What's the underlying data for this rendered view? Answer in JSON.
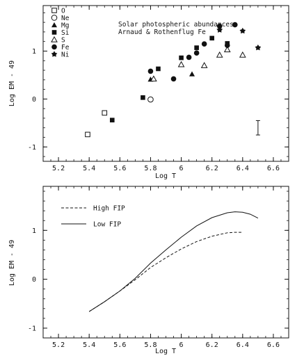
{
  "chart_data": [
    {
      "type": "scatter",
      "xlabel": "Log T",
      "ylabel": "Log EM - 49",
      "xlim": [
        5.1,
        6.7
      ],
      "ylim": [
        -1.3,
        1.95
      ],
      "xticks": [
        5.2,
        5.4,
        5.6,
        5.8,
        6.0,
        6.2,
        6.4,
        6.6
      ],
      "xtick_labels": [
        "5.2",
        "5.4",
        "5.6",
        "5.8",
        "6",
        "6.2",
        "6.4",
        "6.6"
      ],
      "yticks": [
        -1,
        0,
        1
      ],
      "ytick_labels": [
        "-1",
        "0",
        "1"
      ],
      "annotations": [
        "Solar photospheric abundances",
        "Arnaud & Rothenflug Fe"
      ],
      "legend_position": "top-left",
      "series": [
        {
          "name": "O",
          "marker": "open-square",
          "points": [
            [
              5.39,
              -0.74
            ],
            [
              5.5,
              -0.29
            ]
          ]
        },
        {
          "name": "Ne",
          "marker": "open-circle",
          "points": [
            [
              5.8,
              -0.01
            ]
          ]
        },
        {
          "name": "Mg",
          "marker": "filled-triangle",
          "points": [
            [
              5.8,
              0.41
            ],
            [
              6.07,
              0.52
            ]
          ]
        },
        {
          "name": "Si",
          "marker": "filled-square",
          "points": [
            [
              5.55,
              -0.44
            ],
            [
              5.75,
              0.03
            ],
            [
              5.85,
              0.63
            ],
            [
              6.0,
              0.86
            ],
            [
              6.1,
              1.07
            ],
            [
              6.2,
              1.27
            ],
            [
              6.3,
              1.16
            ]
          ]
        },
        {
          "name": "S",
          "marker": "open-triangle",
          "points": [
            [
              5.82,
              0.42
            ],
            [
              6.0,
              0.72
            ],
            [
              6.15,
              0.7
            ],
            [
              6.25,
              0.92
            ],
            [
              6.3,
              1.03
            ],
            [
              6.4,
              0.92
            ]
          ]
        },
        {
          "name": "Fe",
          "marker": "filled-circle",
          "points": [
            [
              5.8,
              0.58
            ],
            [
              5.95,
              0.42
            ],
            [
              6.05,
              0.87
            ],
            [
              6.1,
              0.96
            ],
            [
              6.15,
              1.15
            ],
            [
              6.25,
              1.52
            ],
            [
              6.3,
              1.12
            ],
            [
              6.35,
              1.55
            ]
          ]
        },
        {
          "name": "Ni",
          "marker": "filled-star",
          "points": [
            [
              6.25,
              1.44
            ],
            [
              6.4,
              1.42
            ],
            [
              6.5,
              1.07
            ]
          ]
        }
      ],
      "error_bar": {
        "x": 6.5,
        "y_low": -0.75,
        "y_high": -0.45
      }
    },
    {
      "type": "line",
      "xlabel": "Log T",
      "ylabel": "Log EM - 49",
      "xlim": [
        5.1,
        6.7
      ],
      "ylim": [
        -1.2,
        1.9
      ],
      "xticks": [
        5.2,
        5.4,
        5.6,
        5.8,
        6.0,
        6.2,
        6.4,
        6.6
      ],
      "xtick_labels": [
        "5.2",
        "5.4",
        "5.6",
        "5.8",
        "6",
        "6.2",
        "6.4",
        "6.6"
      ],
      "yticks": [
        -1,
        0,
        1
      ],
      "ytick_labels": [
        "-1",
        "0",
        "1"
      ],
      "legend_position": "top-left",
      "series": [
        {
          "name": "High FIP",
          "style": "dashed",
          "x": [
            5.4,
            5.5,
            5.6,
            5.7,
            5.8,
            5.9,
            6.0,
            6.1,
            6.2,
            6.3,
            6.35,
            6.4
          ],
          "y": [
            -0.66,
            -0.46,
            -0.24,
            -0.01,
            0.24,
            0.44,
            0.62,
            0.77,
            0.88,
            0.95,
            0.96,
            0.96
          ]
        },
        {
          "name": "Low FIP",
          "style": "solid",
          "x": [
            5.4,
            5.5,
            5.6,
            5.7,
            5.8,
            5.9,
            6.0,
            6.1,
            6.2,
            6.3,
            6.35,
            6.4,
            6.45,
            6.5
          ],
          "y": [
            -0.66,
            -0.46,
            -0.24,
            0.02,
            0.33,
            0.6,
            0.86,
            1.09,
            1.26,
            1.36,
            1.38,
            1.37,
            1.33,
            1.25
          ]
        }
      ]
    }
  ]
}
